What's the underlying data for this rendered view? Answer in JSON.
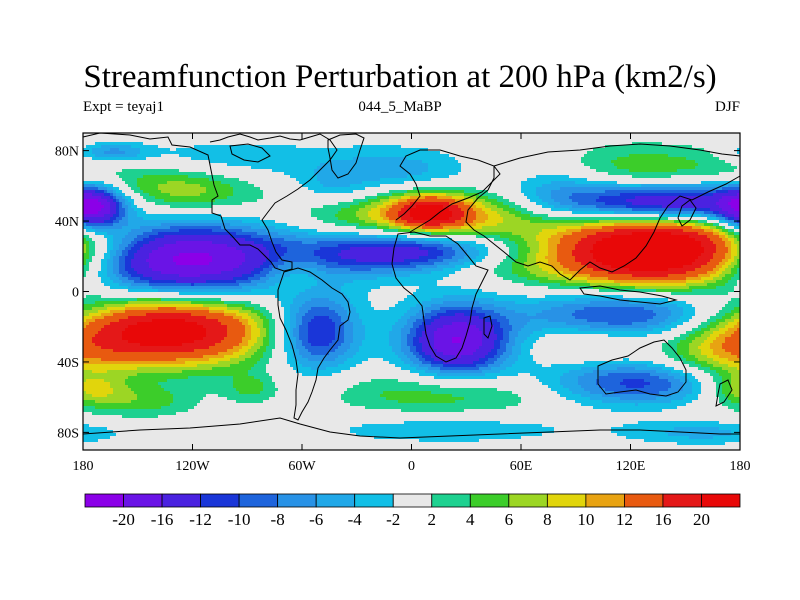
{
  "title": "Streamfunction Perturbation at 200 hPa (km2/s)",
  "subtitle_left": "Expt = teyaj1",
  "subtitle_center": "044_5_MaBP",
  "subtitle_right": "DJF",
  "map_data": {
    "type": "filled-contour-map",
    "variable": "Streamfunction Perturbation",
    "level": "200 hPa",
    "units": "km2/s",
    "season": "DJF",
    "x_range": [
      -180,
      180
    ],
    "y_range": [
      -90,
      90
    ],
    "x_ticks": [
      {
        "value": -180,
        "label": "180"
      },
      {
        "value": -120,
        "label": "120W"
      },
      {
        "value": -60,
        "label": "60W"
      },
      {
        "value": 0,
        "label": "0"
      },
      {
        "value": 60,
        "label": "60E"
      },
      {
        "value": 120,
        "label": "120E"
      },
      {
        "value": 180,
        "label": "180"
      }
    ],
    "y_ticks": [
      {
        "value": 80,
        "label": "80N"
      },
      {
        "value": 40,
        "label": "40N"
      },
      {
        "value": 0,
        "label": "0"
      },
      {
        "value": -40,
        "label": "40S"
      },
      {
        "value": -80,
        "label": "80S"
      }
    ],
    "anomalies": [
      {
        "lon": -131,
        "lat": 18,
        "rlon": 44,
        "rlat": 15,
        "amp": -24,
        "rot": -12
      },
      {
        "lon": -175,
        "lat": 47,
        "rlon": 12,
        "rlat": 9,
        "amp": -18,
        "rot": 0
      },
      {
        "lon": -133,
        "lat": -22,
        "rlon": 38,
        "rlat": 14,
        "amp": 24,
        "rot": 0
      },
      {
        "lon": -128,
        "lat": 57,
        "rlon": 30,
        "rlat": 10,
        "amp": 8,
        "rot": -8
      },
      {
        "lon": -177,
        "lat": -55,
        "rlon": 14,
        "rlat": 6,
        "amp": 7,
        "rot": 0
      },
      {
        "lon": -165,
        "lat": 79,
        "rlon": 14,
        "rlat": 4,
        "amp": -7,
        "rot": 0
      },
      {
        "lon": -148,
        "lat": -62,
        "rlon": 22,
        "rlat": 7,
        "amp": 5,
        "rot": 0
      },
      {
        "lon": -105,
        "lat": 75,
        "rlon": 40,
        "rlat": 8,
        "amp": -4,
        "rot": 0
      },
      {
        "lon": -52,
        "lat": -23,
        "rlon": 16,
        "rlat": 15,
        "amp": -14,
        "rot": 0
      },
      {
        "lon": -65,
        "lat": 11,
        "rlon": 14,
        "rlat": 9,
        "amp": 5,
        "rot": 0
      },
      {
        "lon": -88,
        "lat": -55,
        "rlon": 10,
        "rlat": 6,
        "amp": 4,
        "rot": 0
      },
      {
        "lon": -43,
        "lat": 58,
        "rlon": 14,
        "rlat": 7,
        "amp": -3.5,
        "rot": 0
      },
      {
        "lon": 12,
        "lat": 42,
        "rlon": 45,
        "rlat": 11,
        "amp": 12,
        "rot": -6
      },
      {
        "lon": 10,
        "lat": 45,
        "rlon": 14,
        "rlat": 7,
        "amp": 14,
        "rot": 0
      },
      {
        "lon": -5,
        "lat": 68,
        "rlon": 35,
        "rlat": 10,
        "amp": -6,
        "rot": 0
      },
      {
        "lon": -2,
        "lat": 22,
        "rlon": 40,
        "rlat": 9,
        "amp": -18,
        "rot": 8
      },
      {
        "lon": 28,
        "lat": 15,
        "rlon": 38,
        "rlat": 7,
        "amp": 5,
        "rot": 0
      },
      {
        "lon": 25,
        "lat": -28,
        "rlon": 20,
        "rlat": 14,
        "amp": -20,
        "rot": 0
      },
      {
        "lon": 20,
        "lat": -58,
        "rlon": 45,
        "rlat": 9,
        "amp": 6,
        "rot": 0
      },
      {
        "lon": 20,
        "lat": -78,
        "rlon": 50,
        "rlat": 6,
        "amp": -4,
        "rot": 0
      },
      {
        "lon": 138,
        "lat": 23,
        "rlon": 45,
        "rlat": 15,
        "amp": 30,
        "rot": 0
      },
      {
        "lon": 140,
        "lat": 50,
        "rlon": 38,
        "rlat": 8,
        "amp": -20,
        "rot": 0
      },
      {
        "lon": 115,
        "lat": 70,
        "rlon": 55,
        "rlat": 10,
        "amp": 6,
        "rot": 0
      },
      {
        "lon": 80,
        "lat": 58,
        "rlon": 22,
        "rlat": 14,
        "amp": -7,
        "rot": 0
      },
      {
        "lon": 118,
        "lat": -12,
        "rlon": 40,
        "rlat": 10,
        "amp": -12,
        "rot": 0
      },
      {
        "lon": 130,
        "lat": -52,
        "rlon": 40,
        "rlat": 9,
        "amp": -12,
        "rot": 0
      },
      {
        "lon": 170,
        "lat": -40,
        "rlon": 25,
        "rlat": 16,
        "amp": 8,
        "rot": 0
      },
      {
        "lon": 95,
        "lat": -30,
        "rlon": 20,
        "rlat": 7,
        "amp": 4,
        "rot": 0
      },
      {
        "lon": 160,
        "lat": -80,
        "rlon": 30,
        "rlat": 5,
        "amp": -5,
        "rot": 0
      }
    ],
    "colorbar": {
      "levels": [
        -20,
        -16,
        -12,
        -10,
        -8,
        -6,
        -4,
        -2,
        2,
        4,
        6,
        8,
        10,
        12,
        16,
        20
      ],
      "labels": [
        "-20",
        "-16",
        "-12",
        "-10",
        "-8",
        "-6",
        "-4",
        "-2",
        "2",
        "4",
        "6",
        "8",
        "10",
        "12",
        "16",
        "20"
      ],
      "colors": [
        "#8b00e8",
        "#6a14e6",
        "#4a22e0",
        "#1a36d8",
        "#1e64dc",
        "#2892e6",
        "#21a8e8",
        "#12bfe6",
        "#e8e8e8",
        "#1ed190",
        "#3ccd2a",
        "#9cd624",
        "#e1d50c",
        "#e8a312",
        "#e85a10",
        "#e41818",
        "#e80808"
      ]
    }
  }
}
